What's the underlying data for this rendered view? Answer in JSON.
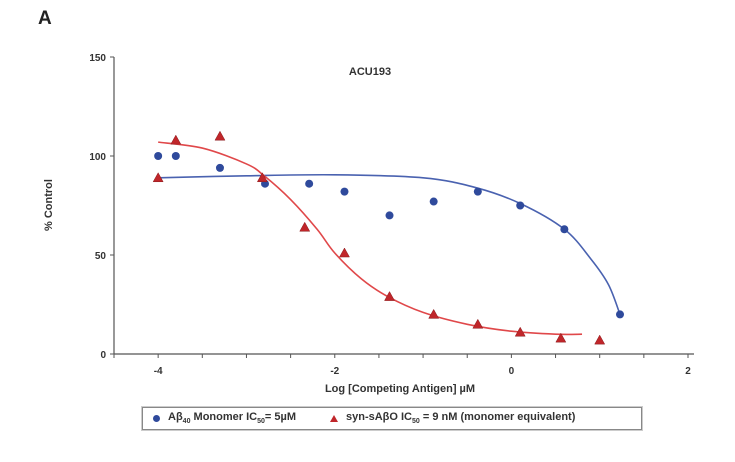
{
  "panel_label": "A",
  "chart_data": {
    "type": "scatter",
    "title": "ACU193",
    "xlabel": "Log [Competing Antigen] µM",
    "ylabel": "% Control",
    "xlim": [
      -4.5,
      2
    ],
    "ylim": [
      0,
      150
    ],
    "x_ticks": [
      -4,
      -2,
      0,
      2
    ],
    "y_ticks": [
      0,
      50,
      100,
      150
    ],
    "grid": false,
    "legend_position": "bottom",
    "series": [
      {
        "name": "Aβ40 Monomer IC50= 5µM",
        "legend": {
          "main": "Aβ",
          "sub1": "40",
          "mid": " Monomer IC",
          "sub2": "50",
          "tail": "= 5µM"
        },
        "color": "#2f4a9c",
        "marker": "circle",
        "x": [
          -4,
          -3.8,
          -3.3,
          -2.79,
          -2.29,
          -1.89,
          -1.38,
          -0.88,
          -0.38,
          0.1,
          0.6,
          1.23
        ],
        "y": [
          100,
          100,
          94,
          86,
          86,
          82,
          70,
          77,
          82,
          75,
          63,
          20
        ],
        "fit": {
          "x": [
            -4,
            -3,
            -2,
            -1,
            -0.4,
            0.1,
            0.6,
            0.9,
            1.1,
            1.23
          ],
          "y": [
            89,
            90,
            90.5,
            89,
            84,
            76,
            63,
            48,
            35,
            20
          ]
        }
      },
      {
        "name": "syn-sAβO IC50 = 9 nM (monomer equivalent)",
        "legend": {
          "main": "syn-sAβO IC",
          "sub2": "50",
          "tail": " = 9 nM (monomer equivalent)"
        },
        "color": "#c0262a",
        "marker": "triangle",
        "x": [
          -4,
          -3.8,
          -3.3,
          -2.82,
          -2.34,
          -1.89,
          -1.38,
          -0.88,
          -0.38,
          0.1,
          0.56,
          1.0
        ],
        "y": [
          89,
          108,
          110,
          89,
          64,
          51,
          29,
          20,
          15,
          11,
          8,
          7
        ],
        "fit": {
          "x": [
            -4,
            -3.5,
            -3,
            -2.8,
            -2.5,
            -2.2,
            -2,
            -1.7,
            -1.4,
            -1,
            -0.5,
            0,
            0.5,
            0.8
          ],
          "y": [
            107,
            104,
            96,
            90,
            78,
            63,
            51,
            38,
            29,
            21,
            15,
            11.5,
            10,
            10
          ]
        }
      }
    ]
  }
}
